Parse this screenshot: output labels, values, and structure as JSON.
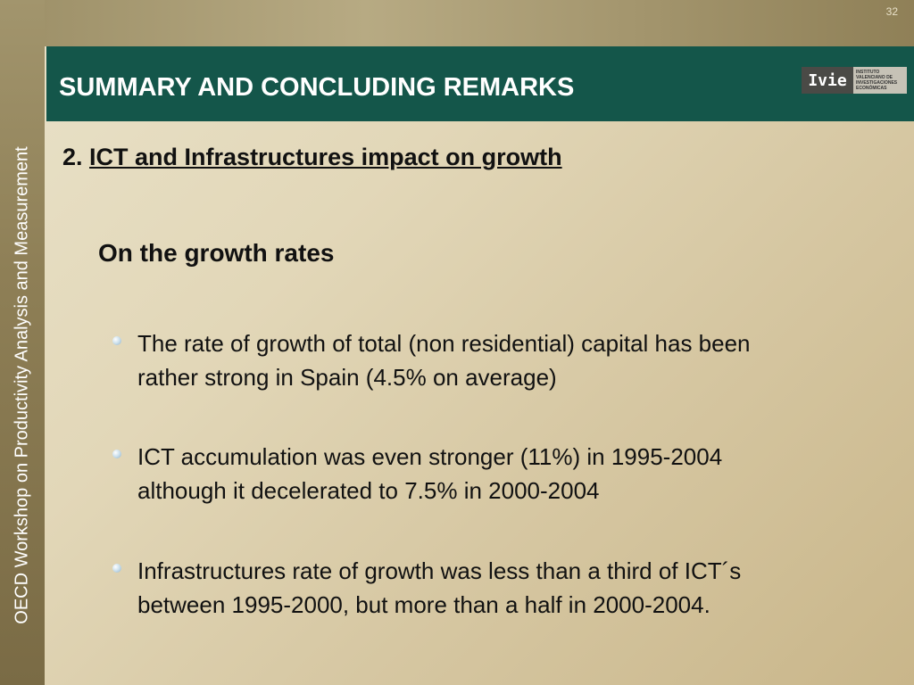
{
  "page_number": "32",
  "sidebar": {
    "text": "OECD Workshop on Productivity Analysis and Measurement"
  },
  "title_bar": {
    "title": "SUMMARY AND CONCLUDING REMARKS",
    "logo": {
      "main": "Ivie",
      "lines": [
        "INSTITUTO",
        "VALENCIANO DE",
        "INVESTIGACIONES",
        "ECONÓMICAS"
      ]
    }
  },
  "content": {
    "heading_number": "2.",
    "heading_text": "ICT and Infrastructures impact on growth",
    "subheading": "On the growth rates",
    "bullets": [
      {
        "line1": "The rate of growth of total (non residential) capital has been",
        "line2": "rather strong in Spain (4.5% on average)"
      },
      {
        "line1": "ICT accumulation was even stronger (11%) in 1995-2004",
        "line2": "although it decelerated to 7.5% in 2000-2004"
      },
      {
        "line1": "Infrastructures rate of growth was less than a third of ICT´s",
        "line2": "between 1995-2000, but more than a half in 2000-2004."
      }
    ]
  },
  "colors": {
    "title_bar": "#14564a",
    "sidebar": "#8e7f56",
    "bullet": "#a9c6d8"
  }
}
